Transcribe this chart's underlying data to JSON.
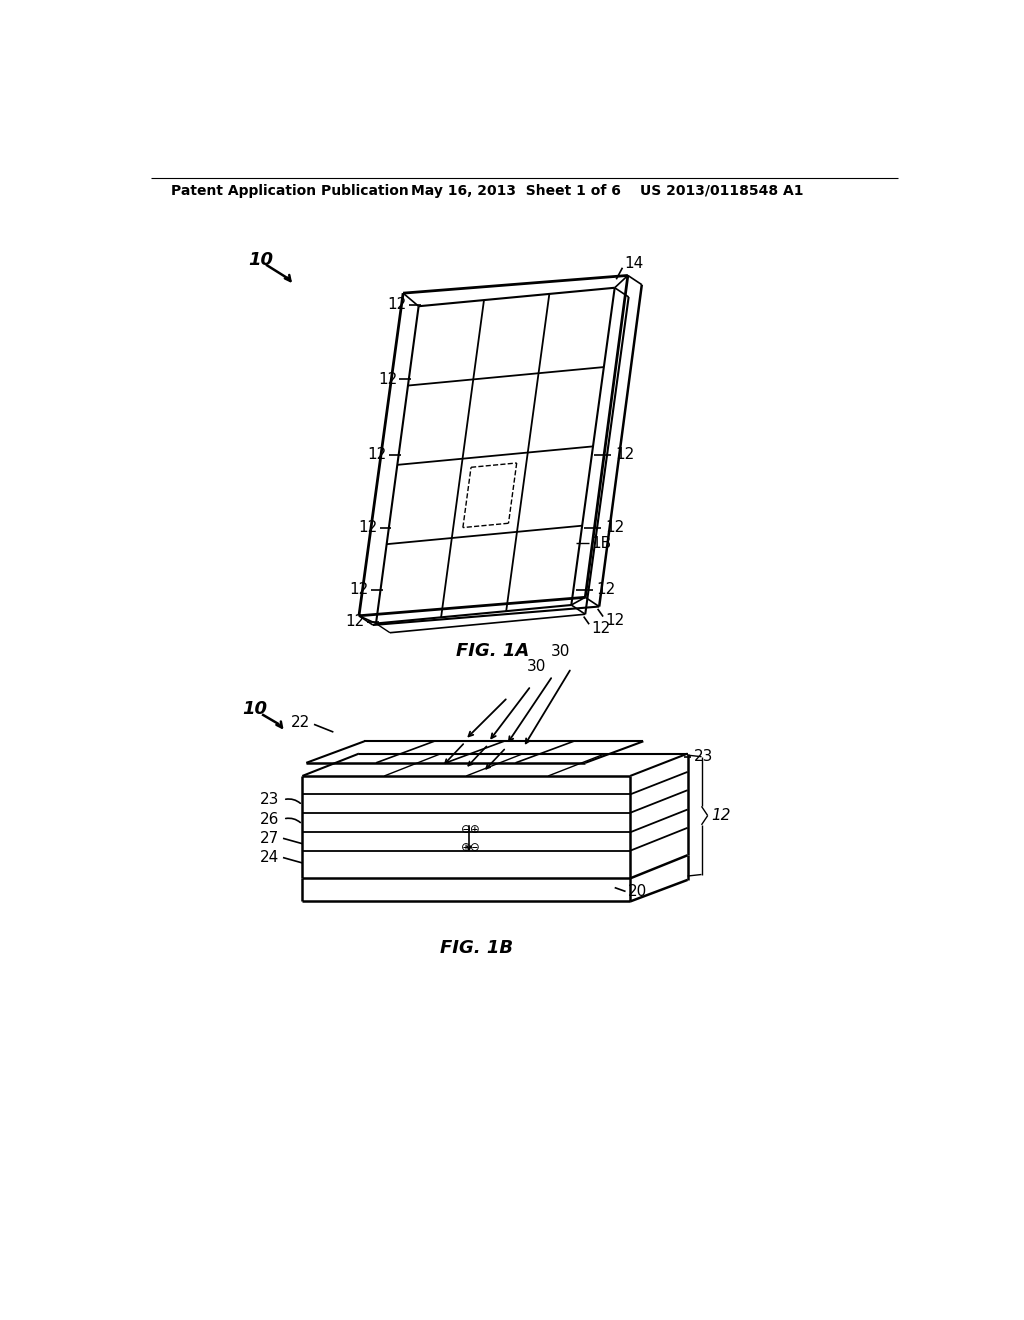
{
  "background_color": "#ffffff",
  "header_left": "Patent Application Publication",
  "header_mid": "May 16, 2013  Sheet 1 of 6",
  "header_right": "US 2013/0118548 A1",
  "fig1a_label": "FIG. 1A",
  "fig1b_label": "FIG. 1B",
  "line_color": "#000000",
  "annotation_fontsize": 11,
  "header_fontsize": 10,
  "figlabel_fontsize": 13
}
